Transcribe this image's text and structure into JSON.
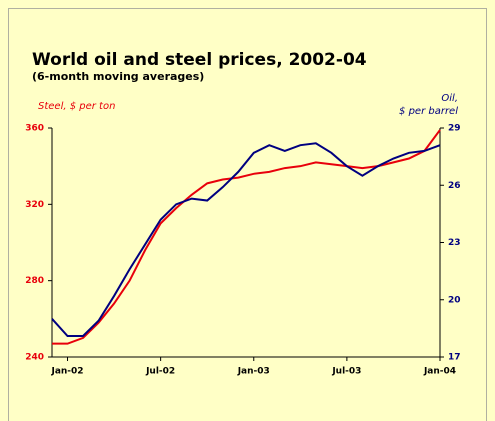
{
  "chart_data": {
    "type": "line",
    "title": "World oil and steel prices, 2002-04",
    "subtitle": "(6-month moving averages)",
    "y_label": "Steel, $ per ton",
    "y2_label": [
      "Oil,",
      "$ per barrel"
    ],
    "x": [
      -1,
      0,
      1,
      2,
      3,
      4,
      5,
      6,
      7,
      8,
      9,
      10,
      11,
      12,
      13,
      14,
      15,
      16,
      17,
      18,
      19,
      20,
      21,
      22,
      23,
      24
    ],
    "xlim": [
      -1,
      24
    ],
    "xticks": [
      {
        "value": 0,
        "label": "Jan-02"
      },
      {
        "value": 6,
        "label": "Jul-02"
      },
      {
        "value": 12,
        "label": "Jan-03"
      },
      {
        "value": 18,
        "label": "Jul-03"
      },
      {
        "value": 24,
        "label": "Jan-04"
      }
    ],
    "ylim": [
      240,
      360
    ],
    "yticks": [
      240,
      280,
      320,
      360
    ],
    "y2lim": [
      17,
      29
    ],
    "y2ticks": [
      17,
      20,
      23,
      26,
      29
    ],
    "series": [
      {
        "name": "Steel",
        "color": "#e8000b",
        "values": [
          247,
          247,
          250,
          258,
          268,
          280,
          296,
          310,
          318,
          325,
          331,
          333,
          334,
          336,
          337,
          339,
          340,
          342,
          341,
          340,
          339,
          340,
          342,
          344,
          348,
          359
        ]
      },
      {
        "name": "Oil",
        "color": "#000080",
        "axis": "y2",
        "values": [
          19.0,
          18.1,
          18.1,
          18.9,
          20.2,
          21.6,
          22.9,
          24.2,
          25.0,
          25.3,
          25.2,
          25.9,
          26.7,
          27.7,
          28.1,
          27.8,
          28.1,
          28.2,
          27.7,
          27.0,
          26.5,
          27.0,
          27.4,
          27.7,
          27.8,
          28.1
        ]
      }
    ]
  }
}
